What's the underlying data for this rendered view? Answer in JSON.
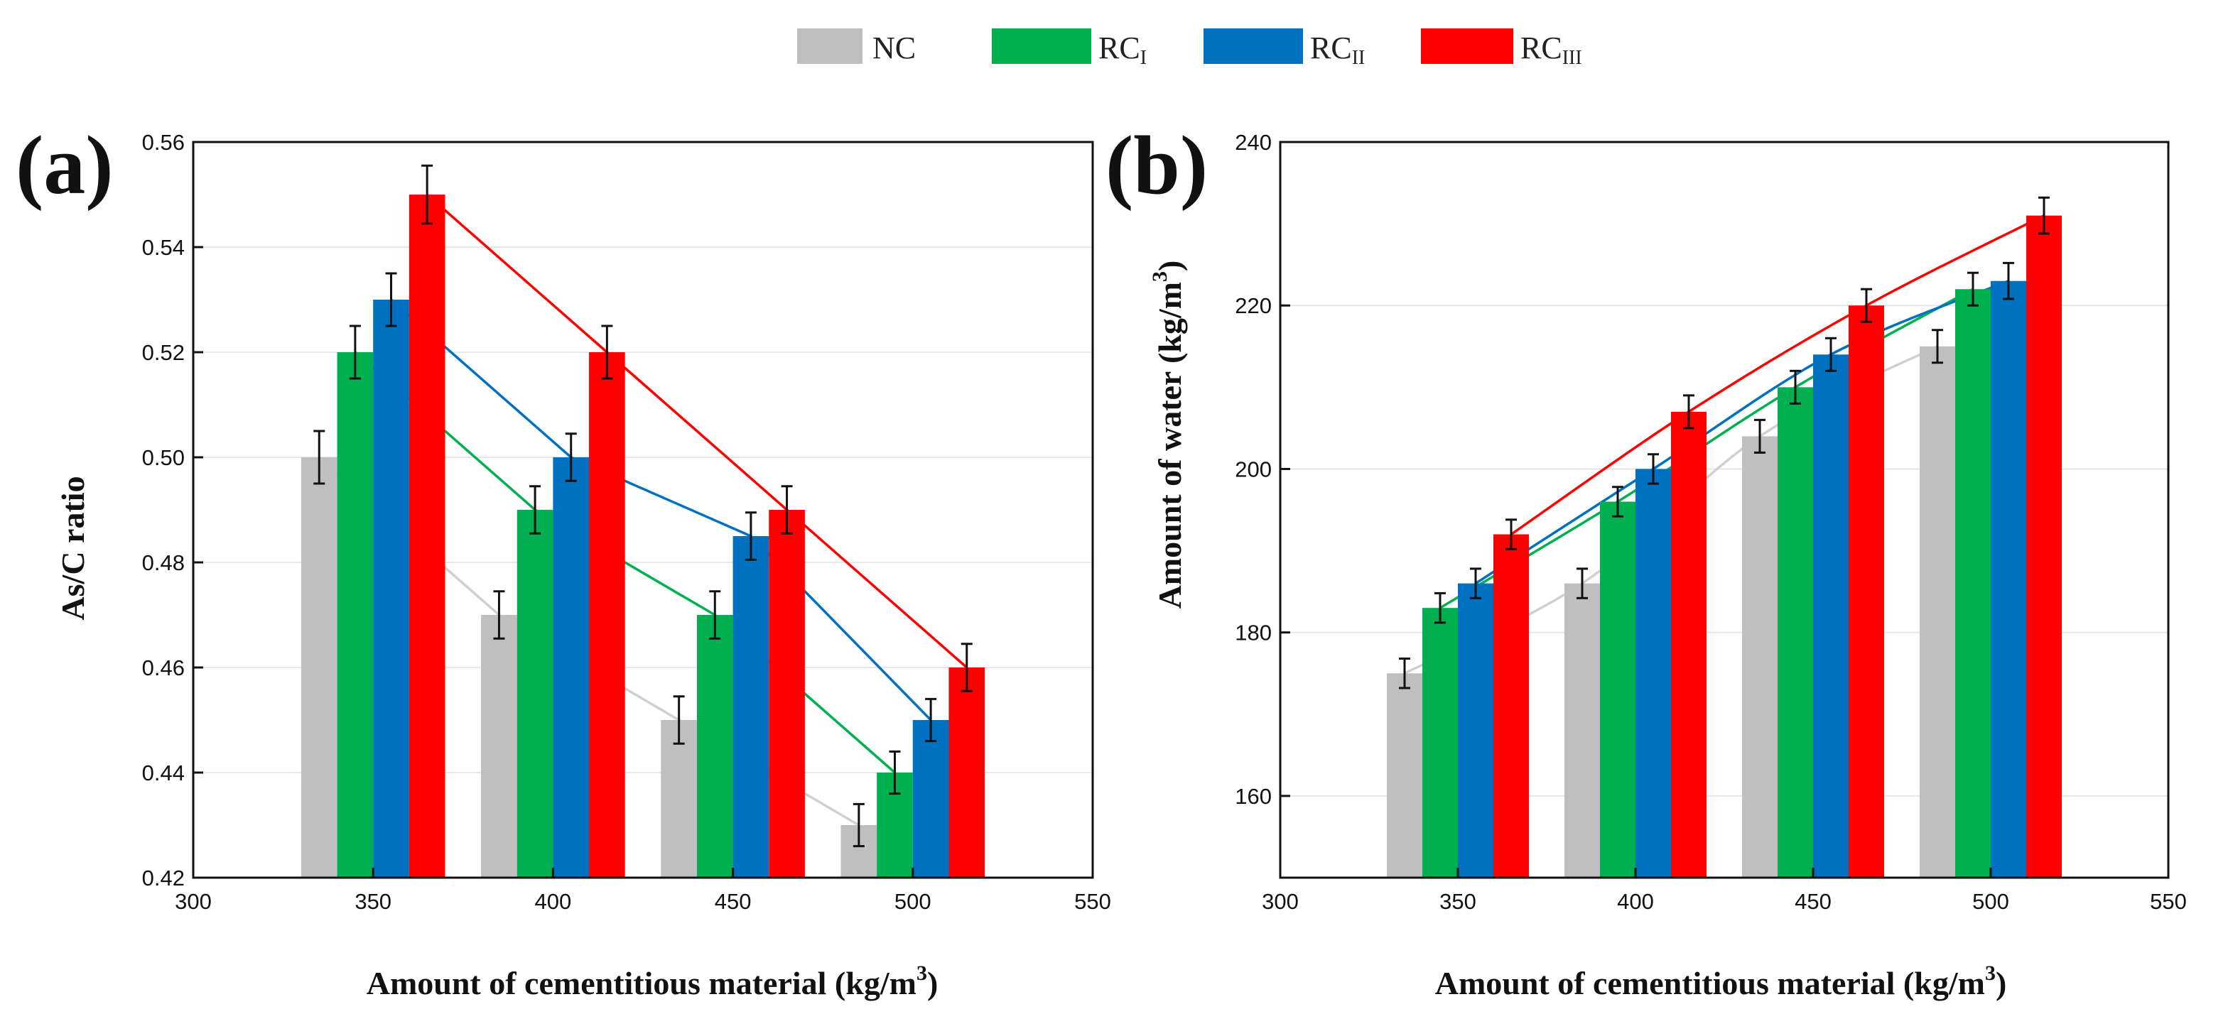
{
  "legend": [
    {
      "key": "NC",
      "label": "NC",
      "sub": "",
      "color": "#bfbfbf"
    },
    {
      "key": "RC1",
      "label": "RC",
      "sub": "I",
      "color": "#00b050"
    },
    {
      "key": "RC2",
      "label": "RC",
      "sub": "II",
      "color": "#0070c0"
    },
    {
      "key": "RC3",
      "label": "RC",
      "sub": "III",
      "color": "#ff0000"
    }
  ],
  "chart_data": [
    {
      "type": "bar",
      "panel_label": "(a)",
      "title": "",
      "xlabel": "Amount of cementitious material (kg/m3)",
      "xlabel_main": "Amount of cementitious material (kg/m",
      "xlabel_sup": "3",
      "xlabel_end": ")",
      "ylabel": "As/C ratio",
      "ylabel_main": "As/C ratio",
      "ylabel_sup": "",
      "ylabel_end": "",
      "xlim": [
        300,
        550
      ],
      "xticks": [
        "300",
        "350",
        "400",
        "450",
        "500",
        "550"
      ],
      "ylim": [
        0.42,
        0.56
      ],
      "yticks": [
        "0.42",
        "0.44",
        "0.46",
        "0.48",
        "0.50",
        "0.52",
        "0.54",
        "0.56"
      ],
      "grid": true,
      "categories": [
        350,
        400,
        450,
        500
      ],
      "series": [
        {
          "name": "NC",
          "x": [
            335,
            385,
            435,
            485
          ],
          "values": [
            0.5,
            0.47,
            0.45,
            0.43
          ],
          "errors": [
            0.005,
            0.0045,
            0.0045,
            0.004
          ]
        },
        {
          "name": "RC1",
          "x": [
            345,
            395,
            445,
            495
          ],
          "values": [
            0.52,
            0.49,
            0.47,
            0.44
          ],
          "errors": [
            0.005,
            0.0045,
            0.0045,
            0.004
          ]
        },
        {
          "name": "RC2",
          "x": [
            355,
            405,
            455,
            505
          ],
          "values": [
            0.53,
            0.5,
            0.485,
            0.45
          ],
          "errors": [
            0.005,
            0.0045,
            0.0045,
            0.004
          ]
        },
        {
          "name": "RC3",
          "x": [
            365,
            415,
            465,
            515
          ],
          "values": [
            0.55,
            0.52,
            0.49,
            0.46
          ],
          "errors": [
            0.0055,
            0.005,
            0.0045,
            0.0045
          ]
        }
      ]
    },
    {
      "type": "bar",
      "panel_label": "(b)",
      "title": "",
      "xlabel": "Amount of cementitious material (kg/m3)",
      "xlabel_main": "Amount of cementitious material (kg/m",
      "xlabel_sup": "3",
      "xlabel_end": ")",
      "ylabel": "Amount of water (kg/m3)",
      "ylabel_main": "Amount of water (kg/m",
      "ylabel_sup": "3",
      "ylabel_end": ")",
      "xlim": [
        300,
        550
      ],
      "xticks": [
        "300",
        "350",
        "400",
        "450",
        "500",
        "550"
      ],
      "ylim": [
        150,
        240
      ],
      "yticks": [
        "160",
        "180",
        "200",
        "220",
        "240"
      ],
      "grid": true,
      "categories": [
        350,
        400,
        450,
        500
      ],
      "series": [
        {
          "name": "NC",
          "x": [
            335,
            385,
            435,
            485
          ],
          "values": [
            175,
            186,
            204,
            215
          ],
          "errors": [
            1.8,
            1.8,
            2.0,
            2.0
          ]
        },
        {
          "name": "RC1",
          "x": [
            345,
            395,
            445,
            495
          ],
          "values": [
            183,
            196,
            210,
            222
          ],
          "errors": [
            1.8,
            1.8,
            2.0,
            2.0
          ]
        },
        {
          "name": "RC2",
          "x": [
            355,
            405,
            455,
            505
          ],
          "values": [
            186,
            200,
            214,
            223
          ],
          "errors": [
            1.8,
            1.8,
            2.0,
            2.2
          ]
        },
        {
          "name": "RC3",
          "x": [
            365,
            415,
            465,
            515
          ],
          "values": [
            192,
            207,
            220,
            231
          ],
          "errors": [
            1.8,
            2.0,
            2.0,
            2.2
          ]
        }
      ]
    }
  ]
}
